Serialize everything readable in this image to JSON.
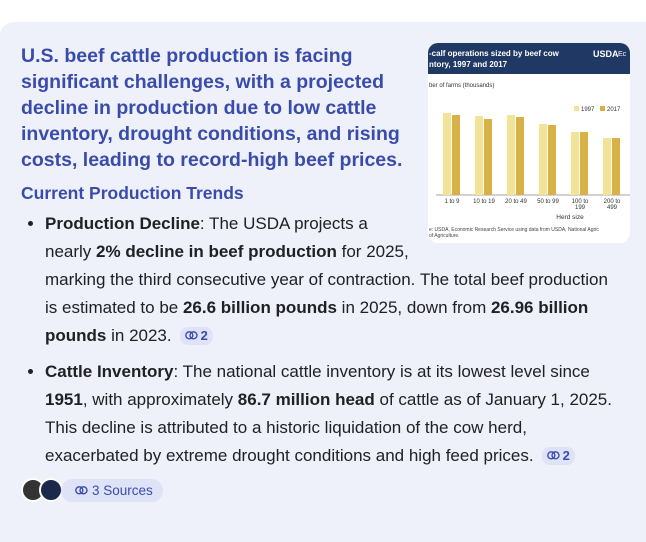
{
  "title": "U.S. beef cattle production is facing significant challenges, with a projected decline in production due to low cattle inventory, drought conditions, and rising costs, leading to record-high beef prices.",
  "subheading": "Current Production Trends",
  "bullets": [
    {
      "segments": [
        {
          "text": "Production Decline",
          "bold": true
        },
        {
          "text": ": The USDA projects a nearly ",
          "bold": false
        },
        {
          "text": "2% decline in beef production",
          "bold": true
        },
        {
          "text": " for 2025, marking the third consecutive year of contraction. The total beef production is estimated to be ",
          "bold": false
        },
        {
          "text": "26.6 billion pounds",
          "bold": true
        },
        {
          "text": " in 2025, down from ",
          "bold": false
        },
        {
          "text": "26.96 billion pounds",
          "bold": true
        },
        {
          "text": " in 2023.",
          "bold": false
        }
      ],
      "citation": "2"
    },
    {
      "segments": [
        {
          "text": "Cattle Inventory",
          "bold": true
        },
        {
          "text": ": The national cattle inventory is at its lowest level since ",
          "bold": false
        },
        {
          "text": "1951",
          "bold": true
        },
        {
          "text": ", with approximately ",
          "bold": false
        },
        {
          "text": "86.7 million head",
          "bold": true
        },
        {
          "text": " of cattle as of January 1, 2025. This decline is attributed to a historic liquidation of the cow herd, exacerbated by extreme drought conditions and high feed prices.",
          "bold": false
        }
      ],
      "citation": "2"
    }
  ],
  "sources": "3 Sources",
  "chart_data": {
    "type": "bar",
    "title_lines": [
      "-calf operations sized by beef cow",
      "ntory, 1997 and 2017"
    ],
    "logo": "USDA",
    "logo_cut": "Ec",
    "ylabel": "ber of farms (thousands)",
    "xlabel": "Herd size",
    "categories": [
      [
        "1 to 9"
      ],
      [
        "10 to 19"
      ],
      [
        "20 to 49"
      ],
      [
        "50 to 99"
      ],
      [
        "100 to",
        "199"
      ],
      [
        "200 to",
        "499"
      ]
    ],
    "series": [
      {
        "name": "1997",
        "color": "#f2e396",
        "values": [
          82,
          79,
          80,
          71,
          63,
          57
        ]
      },
      {
        "name": "2017",
        "color": "#d8b246",
        "values": [
          80,
          76,
          78,
          70,
          63,
          57
        ]
      }
    ],
    "ylim": [
      0,
      100
    ],
    "source_lines": [
      "e: USDA, Economic Research Service using data from USDA, National Agric",
      "of Agriculture."
    ]
  }
}
